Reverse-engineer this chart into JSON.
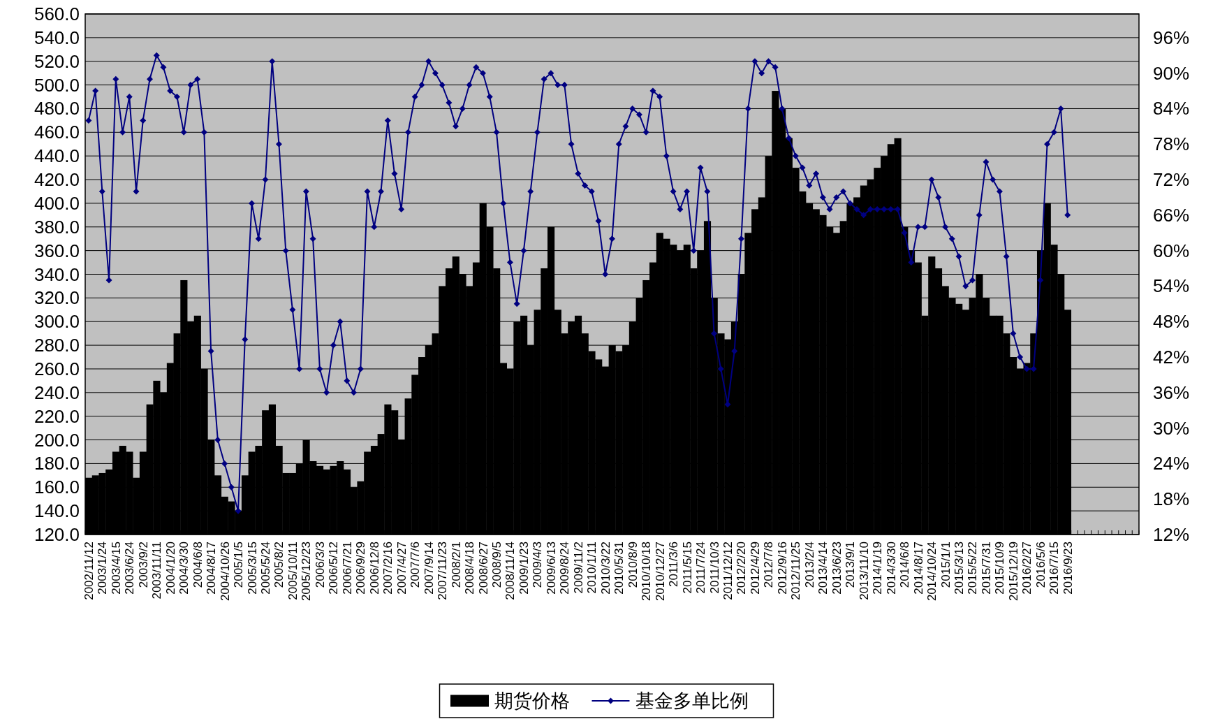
{
  "chart_data": {
    "type": "bar",
    "categories": [
      "2002/11/12",
      null,
      "2003/1/24",
      null,
      "2003/4/15",
      null,
      "2003/6/24",
      null,
      "2003/9/2",
      null,
      "2003/11/11",
      null,
      "2004/1/20",
      null,
      "2004/3/30",
      null,
      "2004/6/8",
      null,
      "2004/8/17",
      null,
      "2004/10/26",
      null,
      "2005/1/5",
      null,
      "2005/3/15",
      null,
      "2005/5/24",
      null,
      "2005/8/2",
      null,
      "2005/10/11",
      null,
      "2005/12/23",
      null,
      "2006/3/3",
      null,
      "2006/5/12",
      null,
      "2006/7/21",
      null,
      "2006/9/29",
      null,
      "2006/12/8",
      null,
      "2007/2/16",
      null,
      "2007/4/27",
      null,
      "2007/7/6",
      null,
      "2007/9/14",
      null,
      "2007/11/23",
      null,
      "2008/2/1",
      null,
      "2008/4/18",
      null,
      "2008/6/27",
      null,
      "2008/9/5",
      null,
      "2008/11/14",
      null,
      "2009/1/23",
      null,
      "2009/4/3",
      null,
      "2009/6/13",
      null,
      "2009/8/24",
      null,
      "2009/11/2",
      null,
      "2010/1/11",
      null,
      "2010/3/22",
      null,
      "2010/5/31",
      null,
      "2010/8/9",
      null,
      "2010/10/18",
      null,
      "2010/12/27",
      null,
      "2011/3/6",
      null,
      "2011/5/15",
      null,
      "2011/7/24",
      null,
      "2011/10/3",
      null,
      "2011/12/12",
      null,
      "2012/2/20",
      null,
      "2012/4/29",
      null,
      "2012/7/8",
      null,
      "2012/9/16",
      null,
      "2012/11/25",
      null,
      "2013/2/4",
      null,
      "2013/4/14",
      null,
      "2013/6/23",
      null,
      "2013/9/1",
      null,
      "2013/11/10",
      null,
      "2014/1/19",
      null,
      "2014/3/30",
      null,
      "2014/6/8",
      null,
      "2014/8/17",
      null,
      "2014/10/24",
      null,
      "2015/1/1",
      null,
      "2015/3/13",
      null,
      "2015/5/22",
      null,
      "2015/7/31",
      null,
      "2015/10/9",
      null,
      "2015/12/19",
      null,
      "2016/2/27",
      null,
      "2016/5/6",
      null,
      "2016/7/15",
      null,
      "2016/9/23",
      null,
      null,
      null,
      null,
      null,
      null,
      null,
      null,
      null,
      null
    ],
    "series": [
      {
        "name": "期货价格",
        "color": "#000000",
        "values": [
          168,
          170,
          172,
          175,
          190,
          195,
          190,
          168,
          190,
          230,
          250,
          240,
          265,
          290,
          335,
          300,
          305,
          260,
          200,
          170,
          152,
          148,
          140,
          170,
          190,
          195,
          225,
          230,
          195,
          172,
          172,
          180,
          200,
          182,
          178,
          175,
          178,
          182,
          175,
          160,
          165,
          190,
          195,
          205,
          230,
          225,
          200,
          235,
          255,
          270,
          280,
          290,
          330,
          345,
          355,
          340,
          330,
          350,
          400,
          380,
          345,
          265,
          260,
          300,
          305,
          280,
          310,
          345,
          380,
          310,
          290,
          300,
          305,
          290,
          275,
          268,
          262,
          280,
          275,
          280,
          300,
          320,
          335,
          350,
          375,
          370,
          365,
          360,
          365,
          345,
          360,
          385,
          320,
          290,
          285,
          300,
          340,
          375,
          395,
          405,
          440,
          495,
          480,
          455,
          430,
          410,
          400,
          395,
          390,
          380,
          375,
          385,
          400,
          405,
          415,
          420,
          430,
          440,
          450,
          455,
          380,
          360,
          350,
          305,
          355,
          345,
          330,
          320,
          315,
          310,
          320,
          340,
          320,
          305,
          305,
          290,
          270,
          260,
          265,
          290,
          360,
          400,
          365,
          340,
          310,
          null,
          null,
          null,
          null,
          null,
          null,
          null,
          null,
          null,
          null
        ]
      },
      {
        "name": "基金多单比例",
        "type": "line",
        "axis": "y2",
        "color": "#000080",
        "marker": "diamond",
        "values": [
          82,
          87,
          70,
          55,
          89,
          80,
          86,
          70,
          82,
          89,
          93,
          91,
          87,
          86,
          80,
          88,
          89,
          80,
          43,
          28,
          24,
          20,
          16,
          45,
          68,
          62,
          72,
          92,
          78,
          60,
          50,
          40,
          70,
          62,
          40,
          36,
          44,
          48,
          38,
          36,
          40,
          70,
          64,
          70,
          82,
          73,
          67,
          80,
          86,
          88,
          92,
          90,
          88,
          85,
          81,
          84,
          88,
          91,
          90,
          86,
          80,
          68,
          58,
          51,
          60,
          70,
          80,
          89,
          90,
          88,
          88,
          78,
          73,
          71,
          70,
          65,
          56,
          62,
          78,
          81,
          84,
          83,
          80,
          87,
          86,
          76,
          70,
          67,
          70,
          60,
          74,
          70,
          46,
          40,
          34,
          43,
          62,
          84,
          92,
          90,
          92,
          91,
          84,
          79,
          76,
          74,
          71,
          73,
          69,
          67,
          69,
          70,
          68,
          67,
          66,
          67,
          67,
          67,
          67,
          67,
          63,
          58,
          64,
          64,
          72,
          69,
          64,
          62,
          59,
          54,
          55,
          66,
          75,
          72,
          70,
          59,
          46,
          42,
          40,
          40,
          55,
          78,
          80,
          84,
          66,
          null,
          null,
          null,
          null,
          null,
          null,
          null,
          null,
          null,
          null
        ]
      }
    ],
    "ylim": [
      120,
      560
    ],
    "yticks": [
      {
        "value": 120,
        "label": "120.0"
      },
      {
        "value": 140,
        "label": "140.0"
      },
      {
        "value": 160,
        "label": "160.0"
      },
      {
        "value": 180,
        "label": "180.0"
      },
      {
        "value": 200,
        "label": "200.0"
      },
      {
        "value": 220,
        "label": "220.0"
      },
      {
        "value": 240,
        "label": "240.0"
      },
      {
        "value": 260,
        "label": "260.0"
      },
      {
        "value": 280,
        "label": "280.0"
      },
      {
        "value": 300,
        "label": "300.0"
      },
      {
        "value": 320,
        "label": "320.0"
      },
      {
        "value": 340,
        "label": "340.0"
      },
      {
        "value": 360,
        "label": "360.0"
      },
      {
        "value": 380,
        "label": "380.0"
      },
      {
        "value": 400,
        "label": "400.0"
      },
      {
        "value": 420,
        "label": "420.0"
      },
      {
        "value": 440,
        "label": "440.0"
      },
      {
        "value": 460,
        "label": "460.0"
      },
      {
        "value": 480,
        "label": "480.0"
      },
      {
        "value": 500,
        "label": "500.0"
      },
      {
        "value": 520,
        "label": "520.0"
      },
      {
        "value": 540,
        "label": "540.0"
      },
      {
        "value": 560,
        "label": "560.0"
      }
    ],
    "y2lim": [
      12,
      100
    ],
    "y2ticks": [
      {
        "value": 12,
        "label": "12%"
      },
      {
        "value": 18,
        "label": "18%"
      },
      {
        "value": 24,
        "label": "24%"
      },
      {
        "value": 30,
        "label": "30%"
      },
      {
        "value": 36,
        "label": "36%"
      },
      {
        "value": 42,
        "label": "42%"
      },
      {
        "value": 48,
        "label": "48%"
      },
      {
        "value": 54,
        "label": "54%"
      },
      {
        "value": 60,
        "label": "60%"
      },
      {
        "value": 66,
        "label": "66%"
      },
      {
        "value": 72,
        "label": "72%"
      },
      {
        "value": 78,
        "label": "78%"
      },
      {
        "value": 84,
        "label": "84%"
      },
      {
        "value": 90,
        "label": "90%"
      },
      {
        "value": 96,
        "label": "96%"
      }
    ],
    "grid": "y",
    "legend": "bottom"
  }
}
